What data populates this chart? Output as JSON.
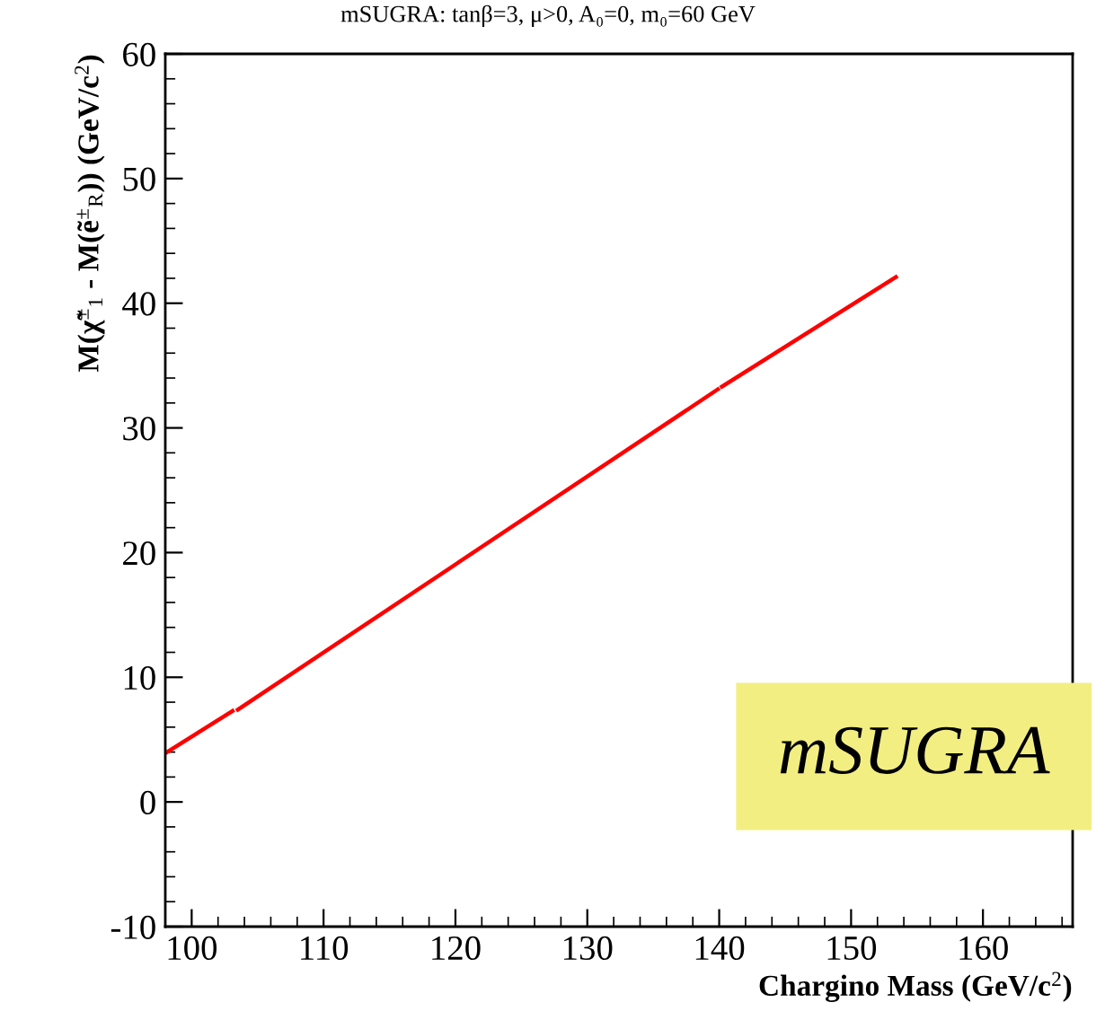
{
  "chart_data": {
    "type": "line",
    "title": "mSUGRA: tanβ=3, μ>0, A₀=0, m₀=60 GeV",
    "xlabel": "Chargino Mass (GeV/c$^{2}$)",
    "ylabel": "M(χ̃$^{±}$$_{1}$ - M(ẽ$^{±}$$_{R}$)) (GeV/c$^{2}$)",
    "x": [
      98,
      103.1,
      103.2,
      103.5,
      139.9,
      140,
      140.2,
      153.4
    ],
    "series": [
      {
        "color": "#ff0000",
        "values": [
          3.9,
          7.3,
          null,
          7.4,
          33.1,
          null,
          33.3,
          42.1
        ]
      }
    ],
    "xlim": [
      98,
      166.8
    ],
    "ylim": [
      -10,
      60
    ],
    "xticks": [
      100,
      110,
      120,
      130,
      140,
      150,
      160
    ],
    "yticks": [
      -10,
      0,
      10,
      20,
      30,
      40,
      50,
      60
    ],
    "grid": false,
    "legend": false,
    "marker": "none",
    "line_style": "solid",
    "annotations": [
      "mSUGRA"
    ]
  }
}
